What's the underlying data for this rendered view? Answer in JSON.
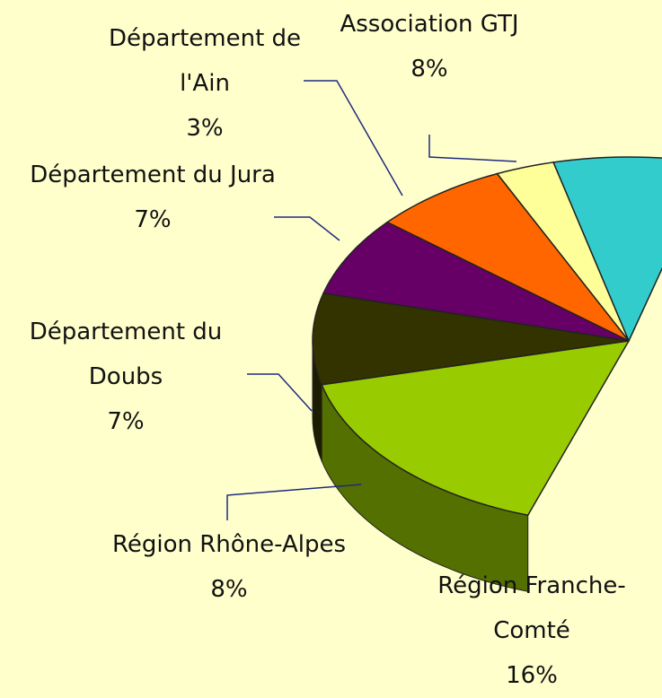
{
  "chart_data": {
    "type": "pie3d",
    "categories": [
      "Association GTJ",
      "Département de l'Ain",
      "Département du Jura",
      "Département du Doubs",
      "Région Rhône-Alpes",
      "Région Franche-Comté"
    ],
    "values": [
      8,
      3,
      7,
      7,
      8,
      16
    ],
    "value_labels": [
      "8%",
      "3%",
      "7%",
      "7%",
      "8%",
      "16%"
    ],
    "colors": [
      "#33cccc",
      "#ffff99",
      "#ff6600",
      "#660066",
      "#333300",
      "#99cc00"
    ]
  }
}
